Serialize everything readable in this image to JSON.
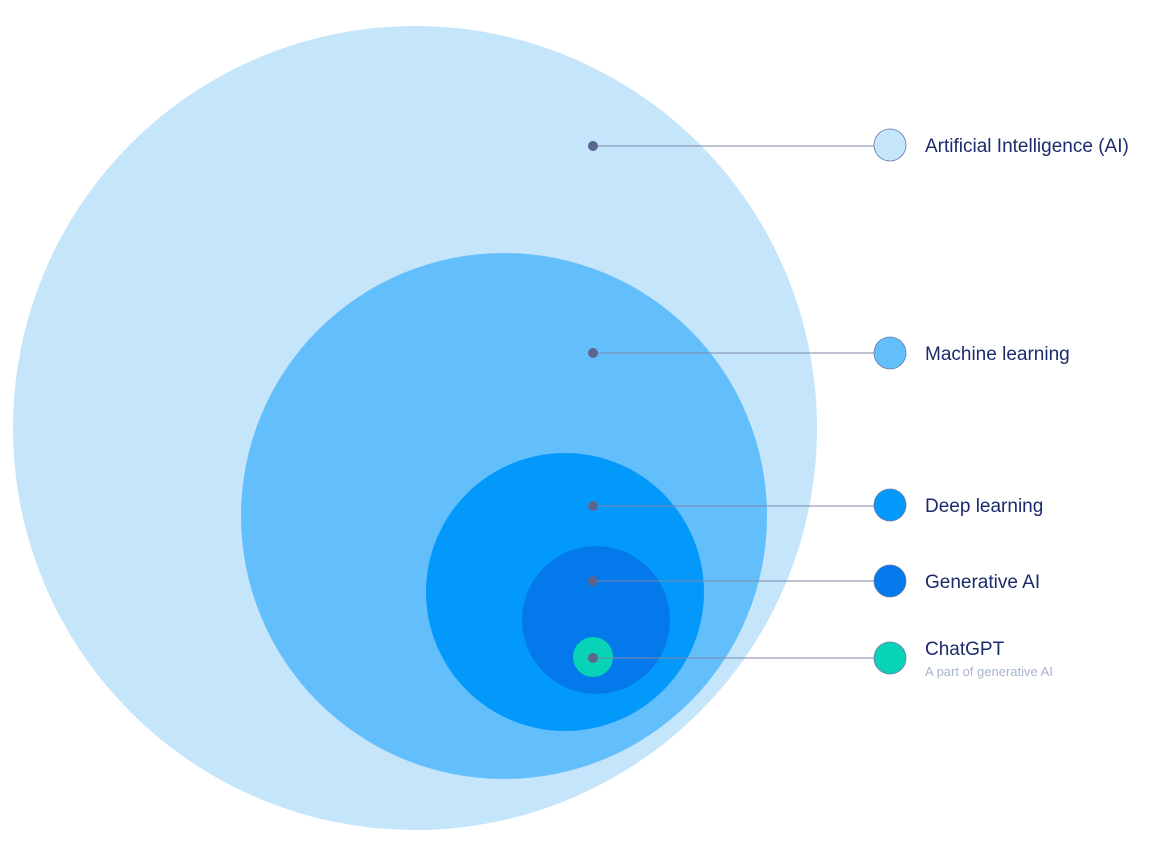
{
  "diagram": {
    "type": "nested-circles",
    "layers": [
      {
        "id": "ai",
        "label": "Artificial Intelligence (AI)",
        "sublabel": "",
        "color": "#c5e5fb",
        "swatch_stroke": "#6a7aa8"
      },
      {
        "id": "ml",
        "label": "Machine learning",
        "sublabel": "",
        "color": "#63bffc",
        "swatch_stroke": "#6a7aa8"
      },
      {
        "id": "dl",
        "label": "Deep learning",
        "sublabel": "",
        "color": "#0399fb",
        "swatch_stroke": "#6a7aa8"
      },
      {
        "id": "genai",
        "label": "Generative AI",
        "sublabel": "",
        "color": "#0479eb",
        "swatch_stroke": "#6a7aa8"
      },
      {
        "id": "chatgpt",
        "label": "ChatGPT",
        "sublabel": "A part of generative AI",
        "color": "#08d3b6",
        "swatch_stroke": "#6a7aa8"
      }
    ],
    "connector_color": "#7d87a8",
    "dot_color": "#5a6690"
  }
}
